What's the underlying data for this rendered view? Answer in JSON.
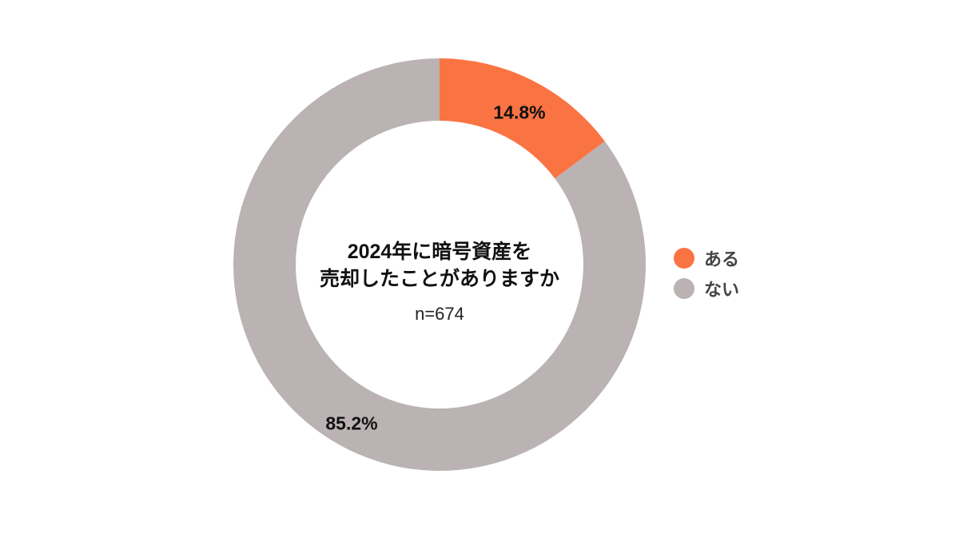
{
  "chart_data": {
    "type": "pie",
    "subtype": "donut",
    "title": "2024年に暗号資産を売却したことがありますか",
    "title_lines": [
      "2024年に暗号資産を",
      "売却したことがありますか"
    ],
    "subtitle": "n=674",
    "categories": [
      "ある",
      "ない"
    ],
    "values": [
      14.8,
      85.2
    ],
    "unit": "%",
    "labels": [
      "14.8%",
      "85.2%"
    ],
    "colors": [
      "#FA7343",
      "#BBB2B3"
    ],
    "legend_position": "right",
    "start_angle_deg": 0,
    "direction": "clockwise"
  },
  "legend": {
    "items": [
      {
        "label": "ある",
        "color": "#FA7343"
      },
      {
        "label": "ない",
        "color": "#BBB2B3"
      }
    ]
  }
}
